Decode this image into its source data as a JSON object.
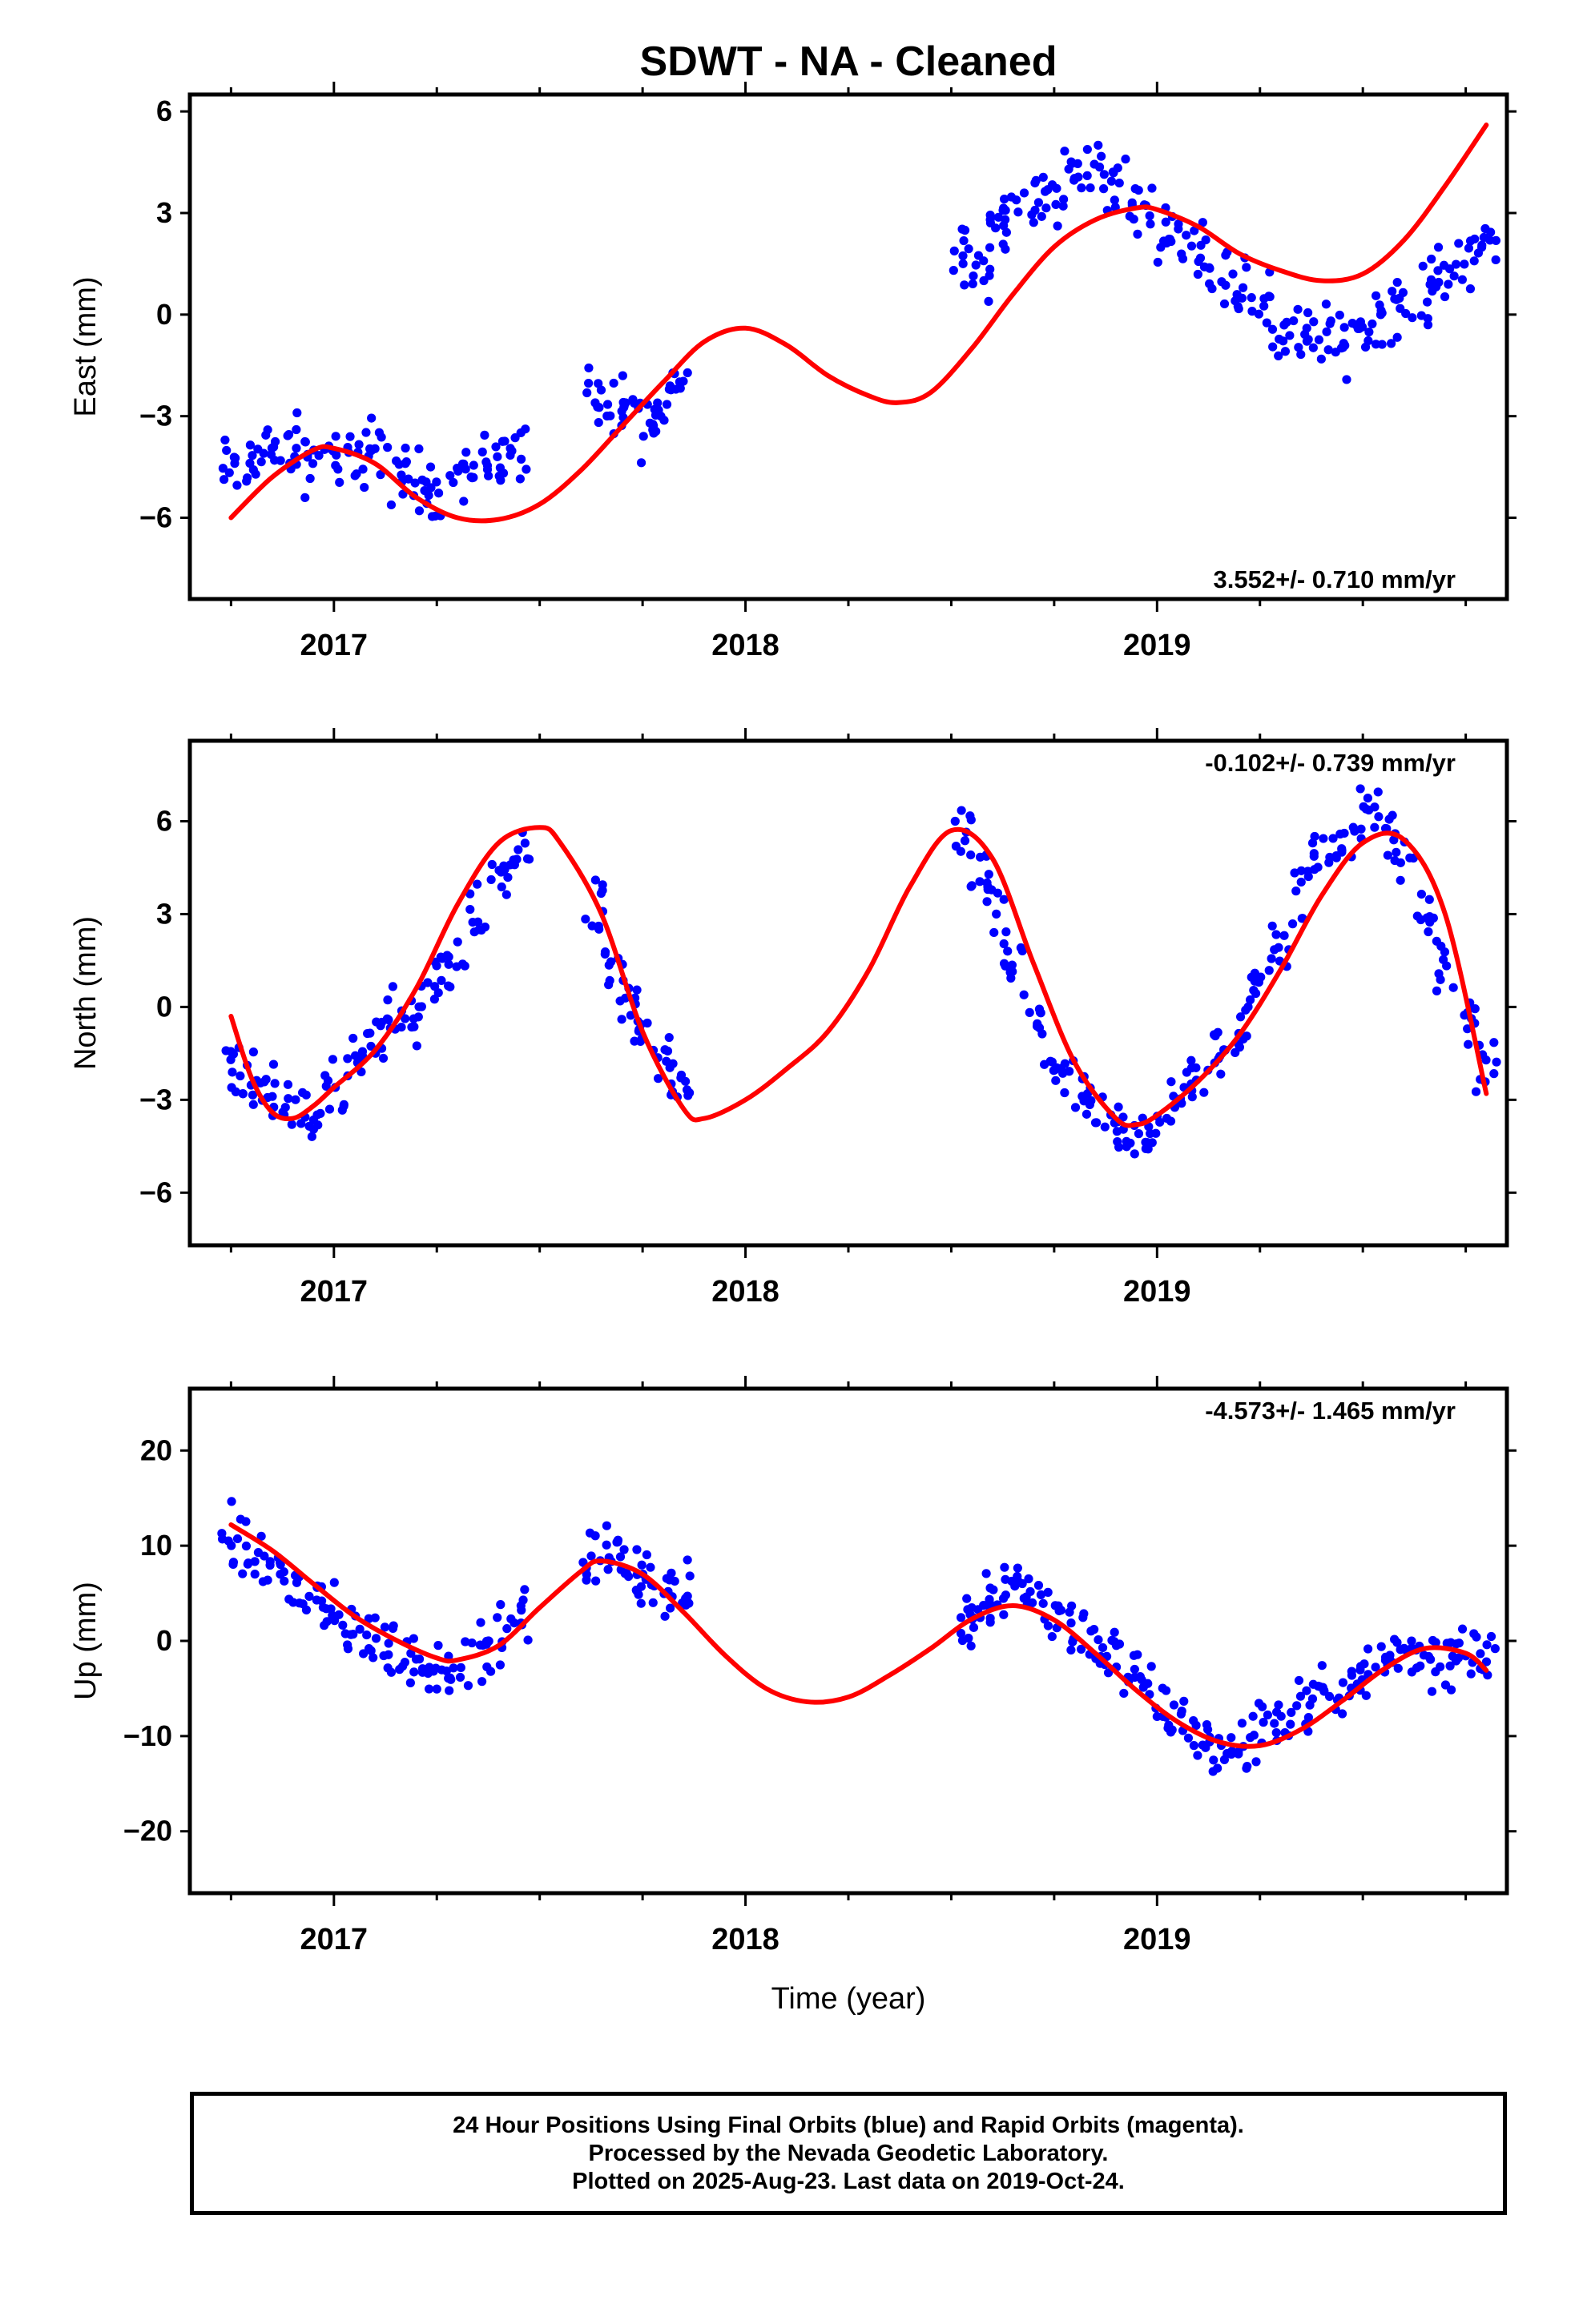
{
  "title": "SDWT  - NA - Cleaned",
  "footer": {
    "line1": "24 Hour Positions Using Final Orbits (blue) and Rapid Orbits (magenta).",
    "line2": "Processed by the Nevada Geodetic Laboratory.",
    "line3": "Plotted on 2025-Aug-23. Last data on 2019-Oct-24."
  },
  "colors": {
    "data_points": "#0000ff",
    "model_fit": "#ff0000",
    "frame": "#000000"
  },
  "chart_data": [
    {
      "type": "scatter",
      "component": "east",
      "ylabel": "East (mm)",
      "xlabel": "",
      "rate_label": "3.552+/- 0.710 mm/yr",
      "rate_position": "bottom-right",
      "xlim": [
        2016.65,
        2019.85
      ],
      "ylim": [
        -8.4,
        6.5
      ],
      "yticks": [
        -6,
        -3,
        0,
        3,
        6
      ],
      "ytick_labels": [
        "−6",
        "−3",
        "0",
        "3",
        "6"
      ],
      "xticks": [
        2017,
        2018,
        2019
      ],
      "xtick_labels": [
        "2017",
        "2018",
        "2019"
      ],
      "series": [
        {
          "kind": "points",
          "x": [
            2016.75,
            2016.8,
            2016.85,
            2016.9,
            2016.95,
            2017.0,
            2017.05,
            2017.1,
            2017.15,
            2017.2,
            2017.25,
            2017.3,
            2017.35,
            2017.4,
            2017.45,
            2017.63,
            2017.68,
            2017.72,
            2017.76,
            2017.8,
            2017.84,
            2018.53,
            2018.57,
            2018.61,
            2018.65,
            2018.7,
            2018.75,
            2018.8,
            2018.85,
            2018.9,
            2018.95,
            2019.0,
            2019.05,
            2019.1,
            2019.15,
            2019.2,
            2019.25,
            2019.3,
            2019.35,
            2019.4,
            2019.45,
            2019.5,
            2019.55,
            2019.6,
            2019.65,
            2019.7,
            2019.75,
            2019.8
          ],
          "y": [
            -4.6,
            -4.3,
            -4.1,
            -3.9,
            -4.4,
            -4.2,
            -4.5,
            -3.8,
            -4.7,
            -4.9,
            -5.1,
            -4.6,
            -4.4,
            -4.2,
            -4.1,
            -2.4,
            -3.1,
            -2.7,
            -3.3,
            -2.8,
            -1.9,
            2.0,
            1.4,
            2.6,
            3.0,
            3.2,
            3.4,
            4.1,
            4.4,
            3.9,
            3.1,
            2.7,
            2.4,
            1.9,
            1.4,
            0.9,
            0.4,
            -0.6,
            -0.7,
            -0.5,
            -0.9,
            -0.4,
            0.1,
            0.3,
            0.6,
            1.1,
            1.7,
            2.2
          ]
        },
        {
          "kind": "fit",
          "x": [
            2016.75,
            2016.85,
            2016.95,
            2017.0,
            2017.1,
            2017.2,
            2017.3,
            2017.4,
            2017.5,
            2017.6,
            2017.7,
            2017.8,
            2017.9,
            2018.0,
            2018.1,
            2018.2,
            2018.3,
            2018.37,
            2018.45,
            2018.55,
            2018.65,
            2018.75,
            2018.85,
            2018.95,
            2019.0,
            2019.1,
            2019.2,
            2019.3,
            2019.4,
            2019.5,
            2019.6,
            2019.7,
            2019.8
          ],
          "y": [
            -6.0,
            -4.8,
            -4.0,
            -3.95,
            -4.4,
            -5.4,
            -6.0,
            -6.05,
            -5.6,
            -4.6,
            -3.3,
            -2.0,
            -0.8,
            -0.4,
            -0.9,
            -1.8,
            -2.4,
            -2.6,
            -2.3,
            -1.0,
            0.6,
            2.0,
            2.8,
            3.15,
            3.1,
            2.6,
            1.8,
            1.3,
            1.0,
            1.2,
            2.2,
            3.8,
            5.6
          ]
        }
      ]
    },
    {
      "type": "scatter",
      "component": "north",
      "ylabel": "North (mm)",
      "xlabel": "",
      "rate_label": "-0.102+/- 0.739 mm/yr",
      "rate_position": "top-right",
      "xlim": [
        2016.65,
        2019.85
      ],
      "ylim": [
        -7.7,
        8.6
      ],
      "yticks": [
        -6,
        -3,
        0,
        3,
        6
      ],
      "ytick_labels": [
        "−6",
        "−3",
        "0",
        "3",
        "6"
      ],
      "xticks": [
        2017,
        2018,
        2019
      ],
      "xtick_labels": [
        "2017",
        "2018",
        "2019"
      ],
      "series": [
        {
          "kind": "points",
          "x": [
            2016.75,
            2016.8,
            2016.85,
            2016.9,
            2016.95,
            2017.0,
            2017.05,
            2017.1,
            2017.15,
            2017.2,
            2017.25,
            2017.3,
            2017.35,
            2017.4,
            2017.45,
            2017.63,
            2017.68,
            2017.72,
            2017.76,
            2017.8,
            2017.84,
            2018.53,
            2018.57,
            2018.61,
            2018.65,
            2018.7,
            2018.75,
            2018.8,
            2018.85,
            2018.9,
            2018.95,
            2019.0,
            2019.05,
            2019.1,
            2019.15,
            2019.2,
            2019.25,
            2019.3,
            2019.35,
            2019.4,
            2019.45,
            2019.5,
            2019.55,
            2019.6,
            2019.65,
            2019.7,
            2019.75,
            2019.8
          ],
          "y": [
            -1.7,
            -2.4,
            -3.0,
            -3.6,
            -3.4,
            -2.7,
            -1.7,
            -0.6,
            -0.4,
            -0.2,
            0.6,
            1.4,
            2.7,
            4.2,
            5.2,
            3.2,
            1.2,
            -0.2,
            -1.1,
            -2.1,
            -2.6,
            5.7,
            4.3,
            2.7,
            1.4,
            -0.4,
            -1.8,
            -2.7,
            -3.6,
            -4.0,
            -4.1,
            -3.9,
            -3.1,
            -2.3,
            -1.6,
            -0.6,
            0.7,
            2.1,
            3.6,
            4.8,
            5.4,
            6.1,
            5.9,
            4.7,
            3.1,
            1.3,
            -0.4,
            -1.9
          ]
        },
        {
          "kind": "fit",
          "x": [
            2016.75,
            2016.8,
            2016.85,
            2016.9,
            2016.95,
            2017.0,
            2017.1,
            2017.2,
            2017.3,
            2017.4,
            2017.5,
            2017.55,
            2017.65,
            2017.75,
            2017.85,
            2017.9,
            2018.0,
            2018.1,
            2018.2,
            2018.3,
            2018.4,
            2018.5,
            2018.6,
            2018.7,
            2018.8,
            2018.9,
            2018.95,
            2019.0,
            2019.1,
            2019.2,
            2019.3,
            2019.4,
            2019.5,
            2019.6,
            2019.7,
            2019.8
          ],
          "y": [
            -0.3,
            -2.3,
            -3.4,
            -3.6,
            -3.2,
            -2.6,
            -1.4,
            0.6,
            3.3,
            5.3,
            5.8,
            5.3,
            3.0,
            -0.8,
            -3.3,
            -3.6,
            -3.0,
            -2.0,
            -0.8,
            1.2,
            3.9,
            5.7,
            4.8,
            1.4,
            -1.8,
            -3.6,
            -3.8,
            -3.5,
            -2.4,
            -0.9,
            1.2,
            3.6,
            5.3,
            5.4,
            3.0,
            -2.8
          ]
        }
      ]
    },
    {
      "type": "scatter",
      "component": "up",
      "ylabel": "Up (mm)",
      "xlabel": "Time (year)",
      "rate_label": "-4.573+/- 1.465 mm/yr",
      "rate_position": "top-right",
      "xlim": [
        2016.65,
        2019.85
      ],
      "ylim": [
        -26.5,
        26.5
      ],
      "yticks": [
        -20,
        -10,
        0,
        10,
        20
      ],
      "ytick_labels": [
        "−20",
        "−10",
        "0",
        "10",
        "20"
      ],
      "xticks": [
        2017,
        2018,
        2019
      ],
      "xtick_labels": [
        "2017",
        "2018",
        "2019"
      ],
      "series": [
        {
          "kind": "points",
          "x": [
            2016.75,
            2016.8,
            2016.85,
            2016.9,
            2016.95,
            2017.0,
            2017.05,
            2017.1,
            2017.15,
            2017.2,
            2017.25,
            2017.3,
            2017.35,
            2017.4,
            2017.45,
            2017.63,
            2017.68,
            2017.72,
            2017.76,
            2017.8,
            2017.84,
            2018.53,
            2018.57,
            2018.61,
            2018.65,
            2018.7,
            2018.75,
            2018.8,
            2018.85,
            2018.9,
            2018.95,
            2019.0,
            2019.05,
            2019.1,
            2019.15,
            2019.2,
            2019.25,
            2019.3,
            2019.35,
            2019.4,
            2019.45,
            2019.5,
            2019.55,
            2019.6,
            2019.65,
            2019.7,
            2019.75,
            2019.8
          ],
          "y": [
            10.5,
            9.0,
            7.8,
            5.5,
            4.6,
            2.1,
            1.0,
            0.1,
            -0.9,
            -2.2,
            -2.6,
            -2.1,
            -1.6,
            0.2,
            2.6,
            8.3,
            8.7,
            8.1,
            6.5,
            5.1,
            5.6,
            2.5,
            3.6,
            5.1,
            6.4,
            5.1,
            3.0,
            1.6,
            -0.6,
            -2.1,
            -4.0,
            -6.1,
            -8.1,
            -10.1,
            -12.2,
            -11.3,
            -9.6,
            -8.1,
            -7.0,
            -6.1,
            -5.2,
            -3.1,
            -1.6,
            -1.1,
            -1.6,
            -2.2,
            -1.1,
            -1.5
          ]
        },
        {
          "kind": "fit",
          "x": [
            2016.75,
            2016.85,
            2016.95,
            2017.05,
            2017.15,
            2017.25,
            2017.3,
            2017.4,
            2017.5,
            2017.6,
            2017.65,
            2017.75,
            2017.85,
            2017.95,
            2018.05,
            2018.15,
            2018.25,
            2018.35,
            2018.45,
            2018.55,
            2018.65,
            2018.75,
            2018.85,
            2018.95,
            2019.05,
            2019.15,
            2019.25,
            2019.35,
            2019.45,
            2019.55,
            2019.65,
            2019.75,
            2019.8
          ],
          "y": [
            12.2,
            9.5,
            6.0,
            2.6,
            0.1,
            -1.8,
            -2.0,
            -0.5,
            3.5,
            7.3,
            8.4,
            7.0,
            3.0,
            -1.5,
            -5.0,
            -6.4,
            -5.9,
            -3.6,
            -0.8,
            2.3,
            3.7,
            2.2,
            -1.3,
            -5.2,
            -8.5,
            -10.6,
            -11.0,
            -9.3,
            -6.3,
            -3.0,
            -0.8,
            -1.3,
            -3.1
          ]
        }
      ]
    }
  ]
}
